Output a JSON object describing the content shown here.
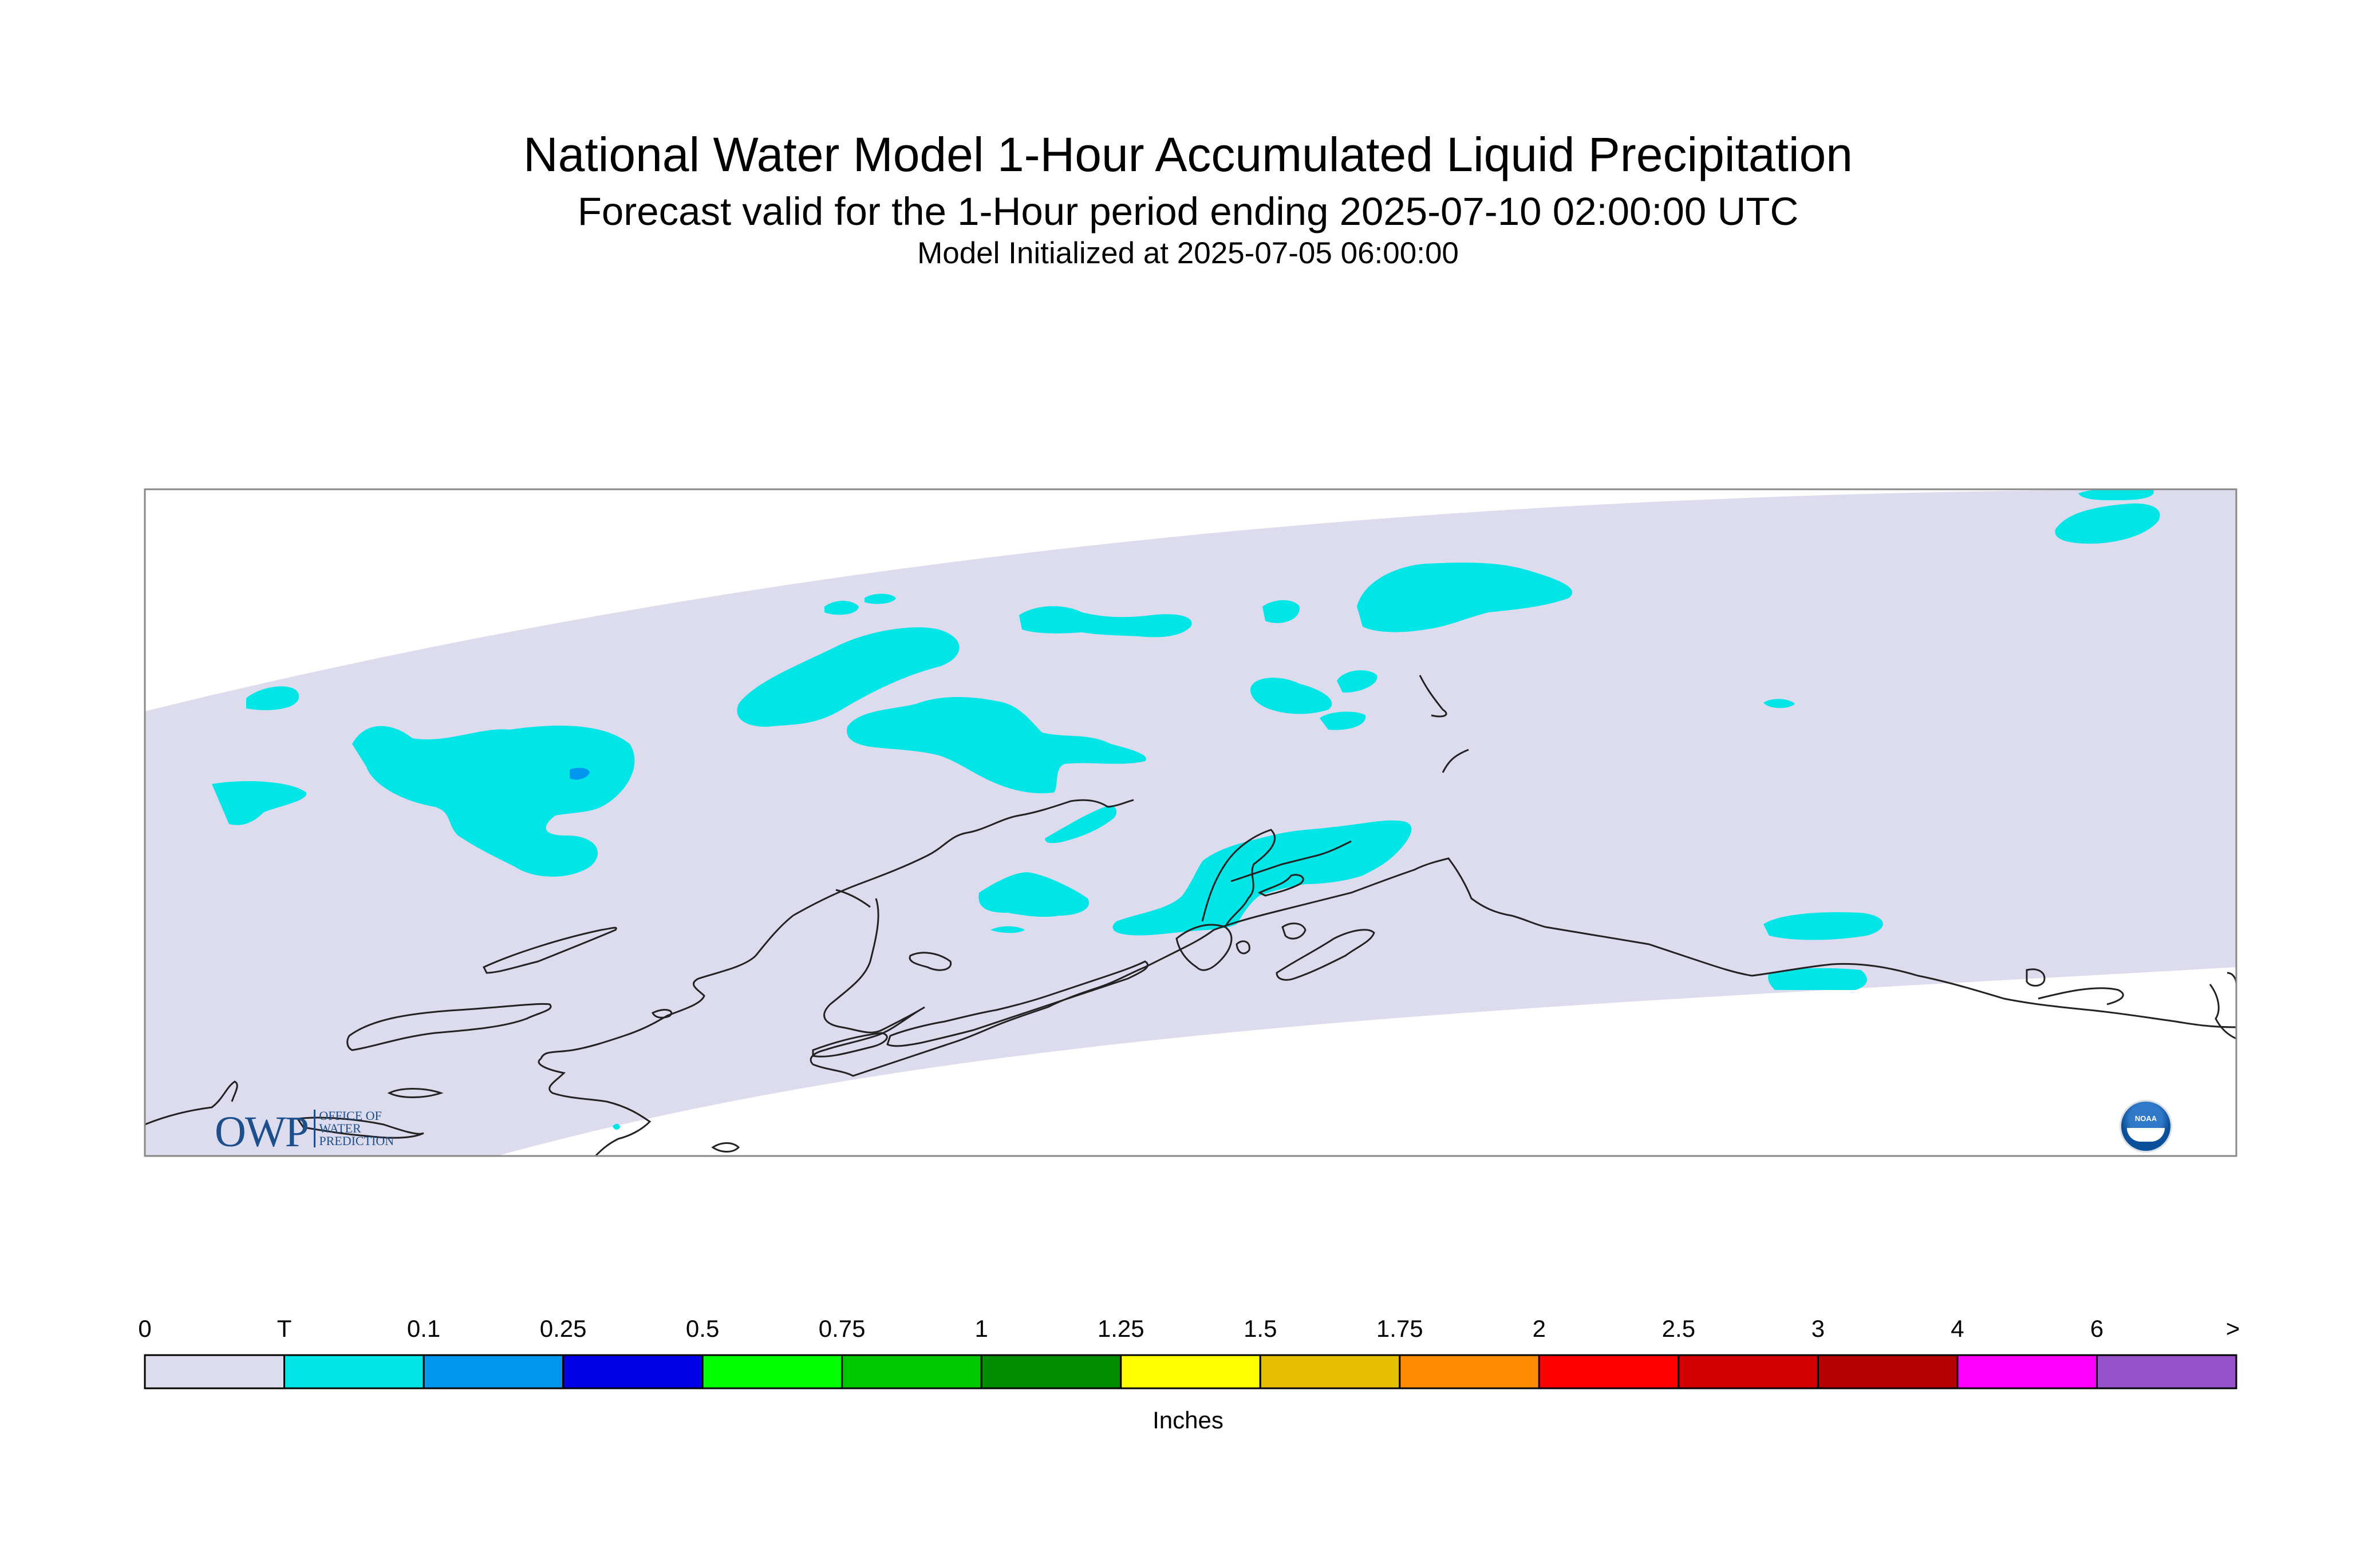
{
  "title": {
    "line1": "National Water Model 1-Hour Accumulated Liquid Precipitation",
    "line2": "Forecast valid for the 1-Hour period ending 2025-07-10 02:00:00 UTC",
    "line3": "Model Initialized at 2025-07-05 06:00:00"
  },
  "legend": {
    "units": "Inches",
    "tick_labels": [
      "0",
      "T",
      "0.1",
      "0.25",
      "0.5",
      "0.75",
      "1",
      "1.25",
      "1.5",
      "1.75",
      "2",
      "2.5",
      "3",
      "4",
      "6",
      ">"
    ],
    "colors": [
      "#dcdcee",
      "#00e5e5",
      "#0096f0",
      "#0000e6",
      "#00ff00",
      "#00c800",
      "#008c00",
      "#ffff00",
      "#e6be00",
      "#ff8c00",
      "#ff0000",
      "#d20000",
      "#b40000",
      "#ff00ff",
      "#9650c8"
    ]
  },
  "map": {
    "domain_fill": "#dcdcee",
    "coast_color": "#222222",
    "frame_color": "#888888",
    "trace_color": "#00e5e5",
    "light_color": "#0096f0"
  },
  "logos": {
    "owp_main": "OWP",
    "owp_sub": [
      "OFFICE OF",
      "WATER",
      "PREDICTION"
    ],
    "noaa_text": "NOAA"
  }
}
